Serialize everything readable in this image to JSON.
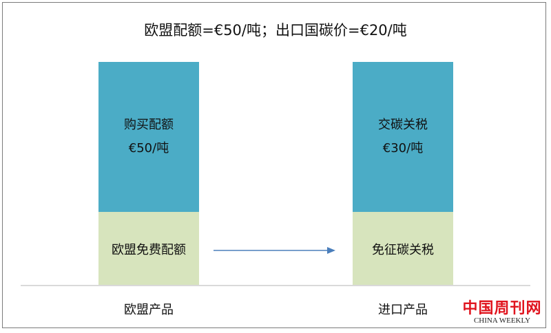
{
  "title": "欧盟配额=€50/吨；出口国碳价=€20/吨",
  "left_bar": {
    "top_label": "购买配额",
    "top_value": "€50/吨",
    "bottom_label": "欧盟免费配额",
    "category": "欧盟产品"
  },
  "right_bar": {
    "top_label": "交碳关税",
    "top_value": "€30/吨",
    "bottom_label": "免征碳关税",
    "category": "进口产品"
  },
  "colors": {
    "top": "#4bacc6",
    "bottom": "#d7e4bd",
    "arrow": "#4a7ebb",
    "logo": "#e0141e"
  },
  "logo": {
    "cn": "中国周刊网",
    "en": "CHINA WEEKLY"
  }
}
